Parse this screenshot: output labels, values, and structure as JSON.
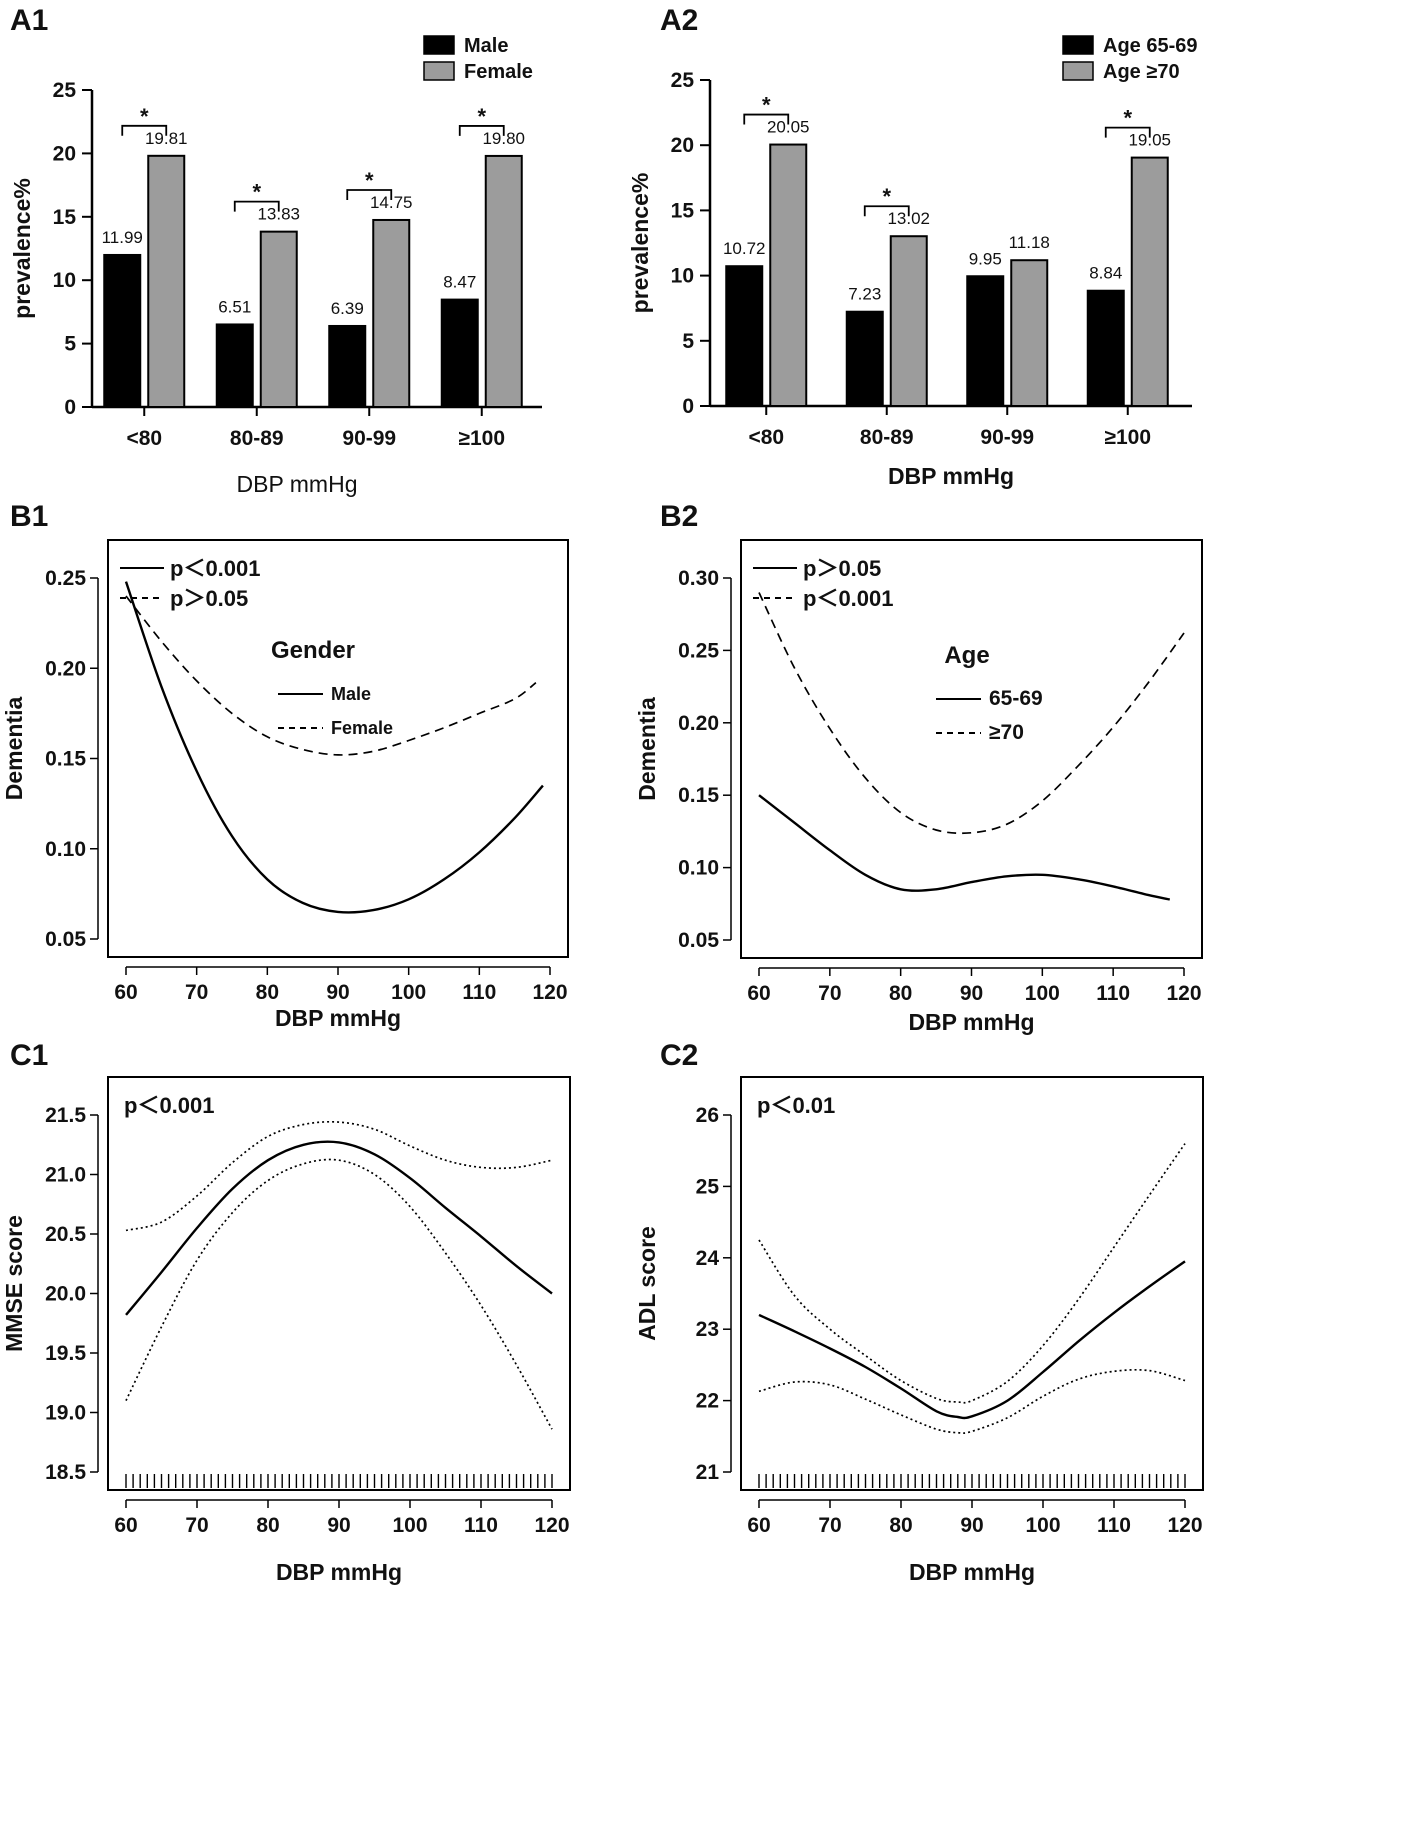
{
  "colors": {
    "black_bar": "#000000",
    "grey_bar": "#9c9c9c",
    "axis": "#000000"
  },
  "chart_data": [
    {
      "id": "A1",
      "type": "bar",
      "panel_label": "A1",
      "categories": [
        "<80",
        "80-89",
        "90-99",
        "≥100"
      ],
      "series": [
        {
          "name": "Male",
          "values": [
            11.99,
            6.51,
            6.39,
            8.47
          ],
          "labels": [
            "11.99",
            "6.51",
            "6.39",
            "8.47"
          ]
        },
        {
          "name": "Female",
          "values": [
            19.81,
            13.83,
            14.75,
            19.8
          ],
          "labels": [
            "19.81",
            "13.83",
            "14.75",
            "19.80"
          ]
        }
      ],
      "significance": [
        "*",
        "*",
        "*",
        "*"
      ],
      "xlabel": "DBP mmHg",
      "ylabel": "prevalence%",
      "ylim": [
        0,
        25
      ],
      "yticks": [
        0,
        5,
        10,
        15,
        20,
        25
      ],
      "legend_position": "top-right",
      "grid": false
    },
    {
      "id": "A2",
      "type": "bar",
      "panel_label": "A2",
      "categories": [
        "<80",
        "80-89",
        "90-99",
        "≥100"
      ],
      "series": [
        {
          "name": "Age 65-69",
          "values": [
            10.72,
            7.23,
            9.95,
            8.84
          ],
          "labels": [
            "10.72",
            "7.23",
            "9.95",
            "8.84"
          ]
        },
        {
          "name": "Age ≥70",
          "values": [
            20.05,
            13.02,
            11.18,
            19.05
          ],
          "labels": [
            "20.05",
            "13.02",
            "11.18",
            "19.05"
          ]
        }
      ],
      "significance": [
        "*",
        "*",
        "",
        "*"
      ],
      "xlabel": "DBP mmHg",
      "ylabel": "prevalence%",
      "ylim": [
        0,
        25
      ],
      "yticks": [
        0,
        5,
        10,
        15,
        20,
        25
      ],
      "legend_position": "top-right",
      "grid": false
    },
    {
      "id": "B1",
      "type": "line",
      "panel_label": "B1",
      "xlabel": "DBP mmHg",
      "ylabel": "Dementia",
      "xlim": [
        60,
        120
      ],
      "ylim": [
        0.05,
        0.25
      ],
      "xticks": [
        60,
        70,
        80,
        90,
        100,
        110,
        120
      ],
      "yticks": [
        0.05,
        0.1,
        0.15,
        0.2,
        0.25
      ],
      "ytick_labels": [
        "0.05",
        "0.10",
        "0.15",
        "0.20",
        "0.25"
      ],
      "pvalue_legend": [
        {
          "style": "solid",
          "text": "p＜0.001"
        },
        {
          "style": "dashed",
          "text": "p＞0.05"
        }
      ],
      "legend_title": "Gender",
      "series": [
        {
          "name": "Male",
          "style": "solid",
          "x": [
            60,
            65,
            70,
            75,
            80,
            85,
            90,
            95,
            100,
            105,
            110,
            115,
            119
          ],
          "y": [
            0.248,
            0.19,
            0.143,
            0.107,
            0.083,
            0.07,
            0.065,
            0.066,
            0.072,
            0.083,
            0.098,
            0.117,
            0.135
          ]
        },
        {
          "name": "Female",
          "style": "dashed",
          "x": [
            60,
            65,
            70,
            75,
            80,
            85,
            90,
            95,
            100,
            105,
            110,
            115,
            118
          ],
          "y": [
            0.24,
            0.215,
            0.193,
            0.175,
            0.162,
            0.155,
            0.152,
            0.154,
            0.16,
            0.167,
            0.175,
            0.183,
            0.192
          ]
        }
      ]
    },
    {
      "id": "B2",
      "type": "line",
      "panel_label": "B2",
      "xlabel": "DBP mmHg",
      "ylabel": "Dementia",
      "xlim": [
        60,
        120
      ],
      "ylim": [
        0.05,
        0.3
      ],
      "xticks": [
        60,
        70,
        80,
        90,
        100,
        110,
        120
      ],
      "yticks": [
        0.05,
        0.1,
        0.15,
        0.2,
        0.25,
        0.3
      ],
      "ytick_labels": [
        "0.05",
        "0.10",
        "0.15",
        "0.20",
        "0.25",
        "0.30"
      ],
      "pvalue_legend": [
        {
          "style": "solid",
          "text": "p＞0.05"
        },
        {
          "style": "dashed",
          "text": "p＜0.001"
        }
      ],
      "legend_title": "Age",
      "series": [
        {
          "name": "65-69",
          "style": "solid",
          "x": [
            60,
            65,
            70,
            75,
            80,
            85,
            90,
            95,
            100,
            105,
            110,
            115,
            118
          ],
          "y": [
            0.15,
            0.131,
            0.112,
            0.095,
            0.085,
            0.085,
            0.09,
            0.094,
            0.095,
            0.092,
            0.087,
            0.081,
            0.078
          ]
        },
        {
          "name": "≥70",
          "style": "dashed",
          "x": [
            60,
            65,
            70,
            75,
            80,
            85,
            90,
            95,
            100,
            105,
            110,
            115,
            120
          ],
          "y": [
            0.29,
            0.238,
            0.196,
            0.162,
            0.138,
            0.126,
            0.124,
            0.13,
            0.146,
            0.17,
            0.197,
            0.228,
            0.262
          ]
        }
      ]
    },
    {
      "id": "C1",
      "type": "line",
      "panel_label": "C1",
      "xlabel": "DBP mmHg",
      "ylabel": "MMSE score",
      "xlim": [
        60,
        120
      ],
      "ylim": [
        18.5,
        21.5
      ],
      "xticks": [
        60,
        70,
        80,
        90,
        100,
        110,
        120
      ],
      "yticks": [
        18.5,
        19.0,
        19.5,
        20.0,
        20.5,
        21.0,
        21.5
      ],
      "ytick_labels": [
        "18.5",
        "19.0",
        "19.5",
        "20.0",
        "20.5",
        "21.0",
        "21.5"
      ],
      "pvalue_text": "p＜0.001",
      "rug": true,
      "series": [
        {
          "name": "fit",
          "style": "solid",
          "x": [
            60,
            65,
            70,
            75,
            80,
            85,
            90,
            95,
            100,
            105,
            110,
            115,
            120
          ],
          "y": [
            19.82,
            20.18,
            20.55,
            20.88,
            21.12,
            21.25,
            21.27,
            21.17,
            20.97,
            20.72,
            20.48,
            20.23,
            20.0
          ]
        },
        {
          "name": "upper 95% CI",
          "style": "dotted",
          "x": [
            60,
            65,
            70,
            75,
            80,
            85,
            90,
            95,
            100,
            105,
            110,
            115,
            120
          ],
          "y": [
            20.53,
            20.6,
            20.82,
            21.1,
            21.32,
            21.42,
            21.44,
            21.38,
            21.24,
            21.12,
            21.06,
            21.06,
            21.12
          ]
        },
        {
          "name": "lower 95% CI",
          "style": "dotted",
          "x": [
            60,
            65,
            70,
            75,
            80,
            85,
            90,
            95,
            100,
            105,
            110,
            115,
            120
          ],
          "y": [
            19.1,
            19.72,
            20.28,
            20.68,
            20.95,
            21.09,
            21.12,
            21.0,
            20.73,
            20.34,
            19.9,
            19.4,
            18.86
          ]
        }
      ]
    },
    {
      "id": "C2",
      "type": "line",
      "panel_label": "C2",
      "xlabel": "DBP mmHg",
      "ylabel": "ADL score",
      "xlim": [
        60,
        120
      ],
      "ylim": [
        21,
        26
      ],
      "xticks": [
        60,
        70,
        80,
        90,
        100,
        110,
        120
      ],
      "yticks": [
        21,
        22,
        23,
        24,
        25,
        26
      ],
      "ytick_labels": [
        "21",
        "22",
        "23",
        "24",
        "25",
        "26"
      ],
      "pvalue_text": "p＜0.01",
      "rug": true,
      "series": [
        {
          "name": "fit",
          "style": "solid",
          "x": [
            60,
            65,
            70,
            75,
            80,
            85,
            88,
            90,
            95,
            100,
            105,
            110,
            115,
            120
          ],
          "y": [
            23.2,
            22.97,
            22.73,
            22.47,
            22.17,
            21.85,
            21.77,
            21.78,
            22.0,
            22.4,
            22.83,
            23.23,
            23.6,
            23.95
          ]
        },
        {
          "name": "upper 95% CI",
          "style": "dotted",
          "x": [
            60,
            65,
            70,
            75,
            80,
            85,
            88,
            90,
            95,
            100,
            105,
            110,
            115,
            120
          ],
          "y": [
            24.25,
            23.47,
            23.0,
            22.63,
            22.28,
            22.03,
            21.98,
            22.0,
            22.27,
            22.77,
            23.42,
            24.15,
            24.88,
            25.6
          ]
        },
        {
          "name": "lower 95% CI",
          "style": "dotted",
          "x": [
            60,
            65,
            70,
            75,
            80,
            85,
            88,
            90,
            95,
            100,
            105,
            110,
            115,
            120
          ],
          "y": [
            22.13,
            22.26,
            22.22,
            22.02,
            21.8,
            21.6,
            21.55,
            21.57,
            21.76,
            22.06,
            22.3,
            22.41,
            22.42,
            22.28
          ]
        }
      ]
    }
  ]
}
